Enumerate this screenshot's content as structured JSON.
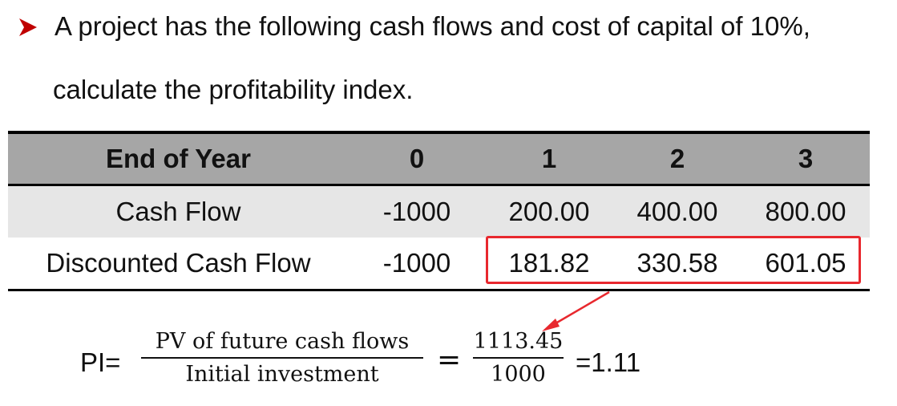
{
  "question": {
    "line1": "A project has the following cash flows and cost of capital of 10%,",
    "line2": "calculate the profitability index.",
    "bullet_icon": "arrow-right-icon",
    "bullet_color": "#c00000"
  },
  "table": {
    "headers": [
      "End of Year",
      "0",
      "1",
      "2",
      "3"
    ],
    "rows": [
      [
        "Cash Flow",
        "-1000",
        "200.00",
        "400.00",
        "800.00"
      ],
      [
        "Discounted Cash Flow",
        "-1000",
        "181.82",
        "330.58",
        "601.05"
      ]
    ],
    "highlight_color": "#e8282e"
  },
  "formula": {
    "label": "PI=",
    "frac1_num": "PV of future cash flows",
    "frac1_den": "Initial investment",
    "equals": "=",
    "frac2_num": "1113.45",
    "frac2_den": "1000",
    "result": "=1.11"
  }
}
